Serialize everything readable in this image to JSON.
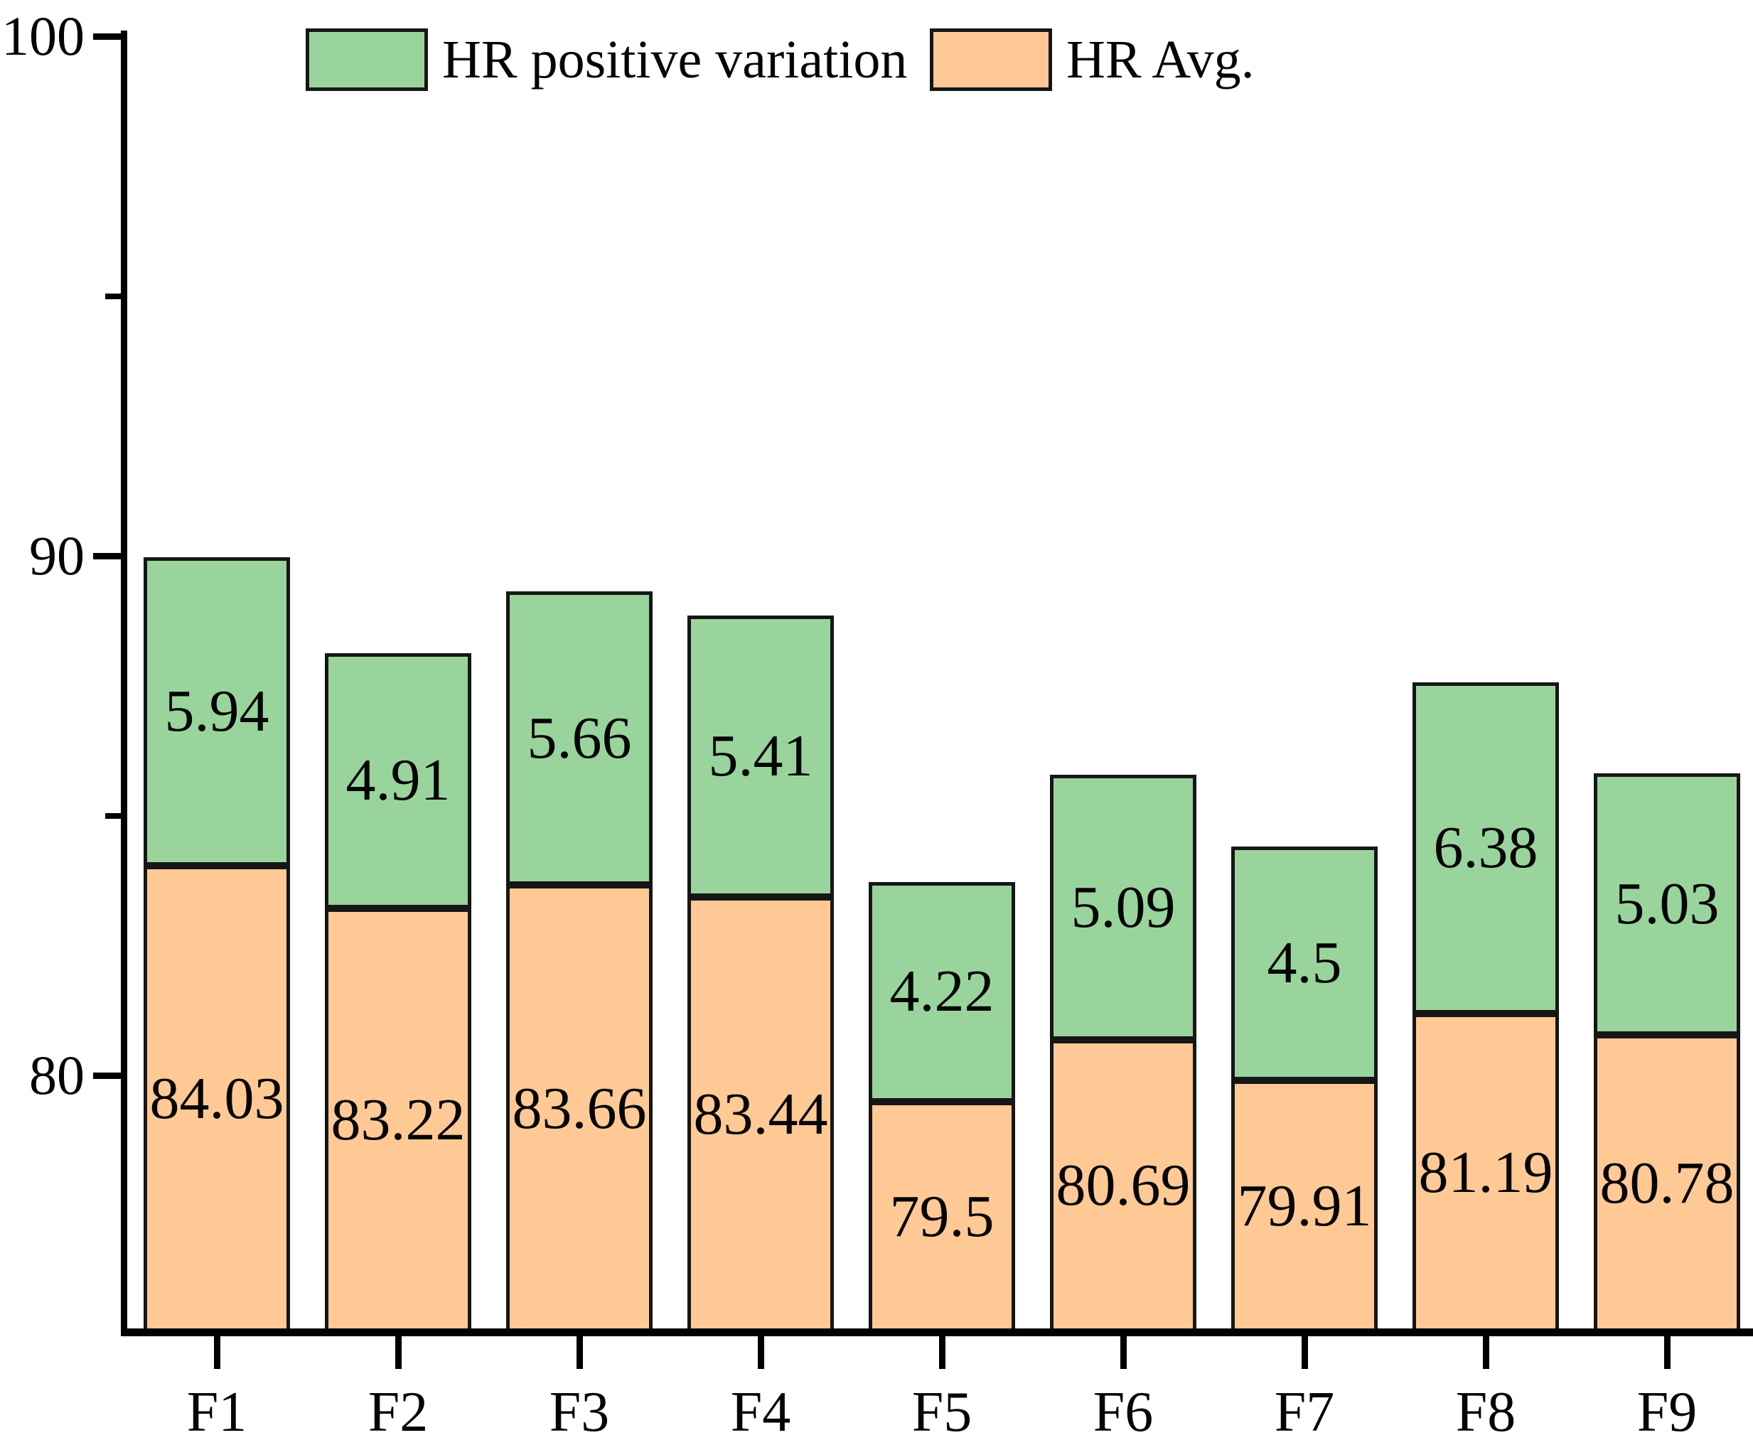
{
  "figure": {
    "background": "#ffffff"
  },
  "legend": {
    "items": [
      {
        "id": "variation",
        "label": "HR positive variation"
      },
      {
        "id": "avg",
        "label": "HR Avg."
      }
    ]
  },
  "colors": {
    "variation_fill": "#9ad49d",
    "avg_fill": "#ffc996",
    "bar_border": "#161616",
    "axis": "#000000",
    "text": "#050505"
  },
  "chart_data": {
    "type": "bar",
    "stacked": true,
    "title": "",
    "xlabel": "",
    "ylabel": "",
    "categories": [
      "F1",
      "F2",
      "F3",
      "F4",
      "F5",
      "F6",
      "F7",
      "F8",
      "F9"
    ],
    "series": [
      {
        "name": "HR Avg.",
        "color": "#ffc996",
        "values": [
          84.03,
          83.22,
          83.66,
          83.44,
          79.5,
          80.69,
          79.91,
          81.19,
          80.78
        ],
        "labels": [
          "84.03",
          "83.22",
          "83.66",
          "83.44",
          "79.5",
          "80.69",
          "79.91",
          "81.19",
          "80.78"
        ]
      },
      {
        "name": "HR positive variation",
        "color": "#9ad49d",
        "values": [
          5.94,
          4.91,
          5.66,
          5.41,
          4.22,
          5.09,
          4.5,
          6.38,
          5.03
        ],
        "labels": [
          "5.94",
          "4.91",
          "5.66",
          "5.41",
          "4.22",
          "5.09",
          "4.5",
          "6.38",
          "5.03"
        ]
      }
    ],
    "stack_totals": [
      89.97,
      88.13,
      89.32,
      88.85,
      83.72,
      85.78,
      84.41,
      87.57,
      85.81
    ],
    "ylim": [
      75,
      100
    ],
    "yticks_major": [
      {
        "value": 100,
        "label": "100"
      },
      {
        "value": 90,
        "label": "90"
      },
      {
        "value": 80,
        "label": "80"
      }
    ],
    "yticks_minor": [
      95,
      85
    ],
    "grid": false,
    "legend_position": "top-inside",
    "value_label_placement": "centered-inside-segment"
  }
}
